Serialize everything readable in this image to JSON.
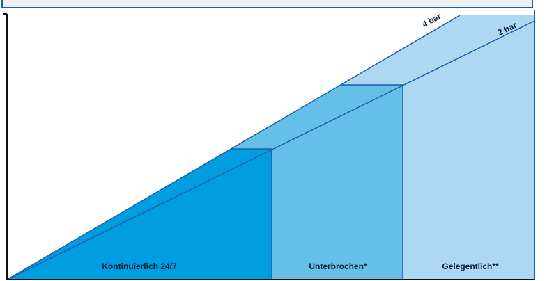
{
  "zones": [
    {
      "label": "Kontinuierlich 24/7",
      "color": "#009de0"
    },
    {
      "label": "Unterbrochen*",
      "color": "#66bfe9"
    },
    {
      "label": "Gelegentlich**",
      "color": "#acd8f4"
    }
  ],
  "pressure_lines": [
    {
      "label": "4 bar"
    },
    {
      "label": "2 bar"
    }
  ],
  "colors": {
    "frame": "#1c5fa8",
    "axis": "#111111",
    "band_light": "#acd8f4"
  }
}
